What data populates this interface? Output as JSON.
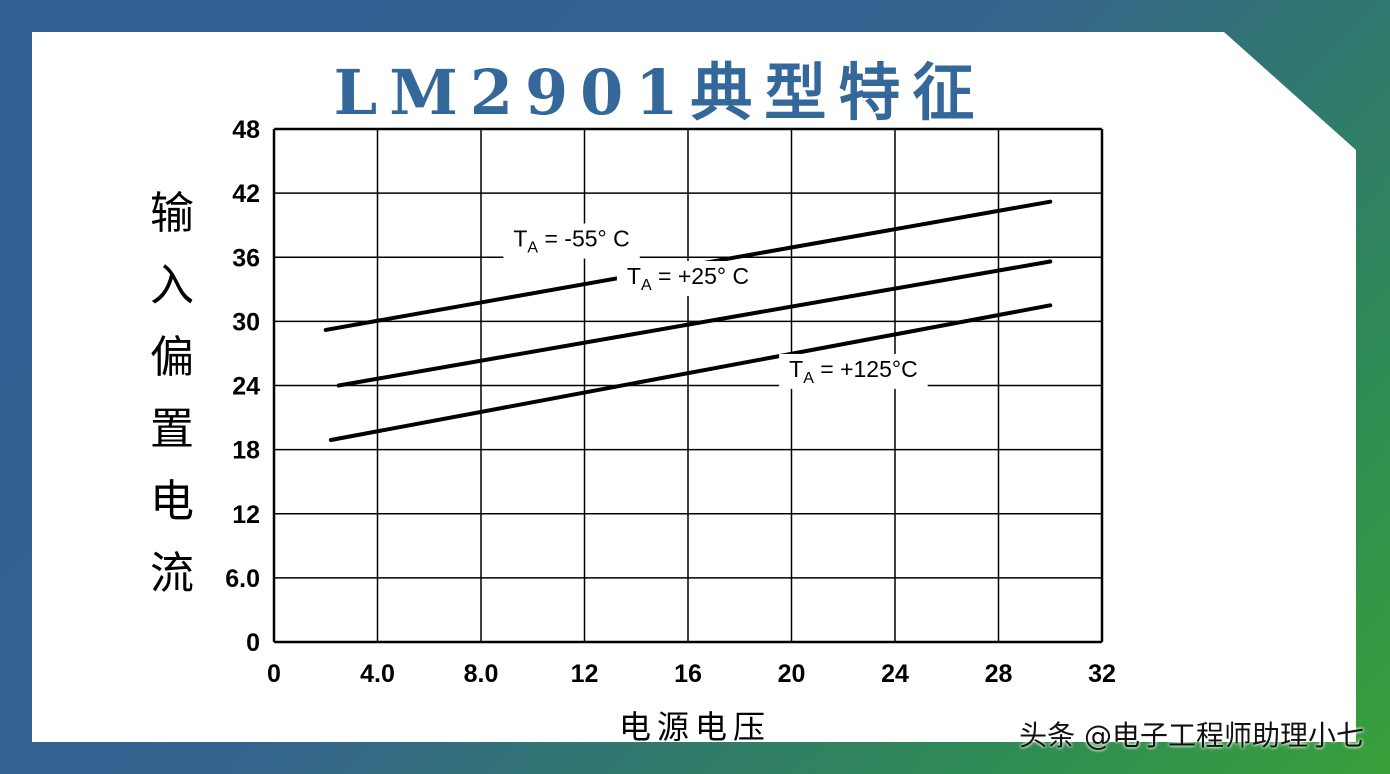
{
  "title": "LM2901典型特征",
  "watermark": "头条 @电子工程师助理小七",
  "chart_data": {
    "type": "line",
    "title": "LM2901典型特征",
    "xlabel": "电源电压",
    "ylabel": "输入偏置电流",
    "xlim": [
      0,
      32
    ],
    "ylim": [
      0,
      48
    ],
    "x_ticks": [
      "0",
      "4.0",
      "8.0",
      "12",
      "16",
      "20",
      "24",
      "28",
      "32"
    ],
    "y_ticks": [
      "0",
      "6.0",
      "12",
      "18",
      "24",
      "30",
      "36",
      "42",
      "48"
    ],
    "grid": true,
    "series": [
      {
        "name": "TA = -55° C",
        "x": [
          2,
          30
        ],
        "y": [
          29.2,
          41.2
        ]
      },
      {
        "name": "TA = +25° C",
        "x": [
          2.5,
          30
        ],
        "y": [
          24.0,
          35.6
        ]
      },
      {
        "name": "TA = +125°C",
        "x": [
          2.2,
          30
        ],
        "y": [
          18.9,
          31.5
        ]
      }
    ]
  }
}
